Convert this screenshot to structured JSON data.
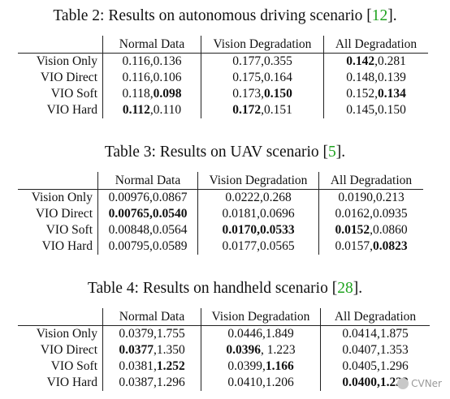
{
  "tables": [
    {
      "caption_prefix": "Table 2: Results on autonomous driving scenario [",
      "ref": "12",
      "caption_suffix": "].",
      "columns": [
        "Normal Data",
        "Vision Degradation",
        "All Degradation"
      ],
      "rows": [
        {
          "label": "Vision Only",
          "cells": [
            [
              {
                "v": "0.116,0.136",
                "b": false
              }
            ],
            [
              {
                "v": "0.177,0.355",
                "b": false
              }
            ],
            [
              {
                "v": "0.142",
                "b": true
              },
              {
                "v": ",0.281",
                "b": false
              }
            ]
          ]
        },
        {
          "label": "VIO Direct",
          "cells": [
            [
              {
                "v": "0.116,0.106",
                "b": false
              }
            ],
            [
              {
                "v": "0.175,0.164",
                "b": false
              }
            ],
            [
              {
                "v": "0.148,0.139",
                "b": false
              }
            ]
          ]
        },
        {
          "label": "VIO Soft",
          "cells": [
            [
              {
                "v": "0.118,",
                "b": false
              },
              {
                "v": "0.098",
                "b": true
              }
            ],
            [
              {
                "v": "0.173,",
                "b": false
              },
              {
                "v": "0.150",
                "b": true
              }
            ],
            [
              {
                "v": "0.152,",
                "b": false
              },
              {
                "v": "0.134",
                "b": true
              }
            ]
          ]
        },
        {
          "label": "VIO Hard",
          "cells": [
            [
              {
                "v": "0.112",
                "b": true
              },
              {
                "v": ",0.110",
                "b": false
              }
            ],
            [
              {
                "v": "0.172",
                "b": true
              },
              {
                "v": ",0.151",
                "b": false
              }
            ],
            [
              {
                "v": "0.145,0.150",
                "b": false
              }
            ]
          ]
        }
      ]
    },
    {
      "caption_prefix": "Table 3: Results on UAV scenario [",
      "ref": "5",
      "caption_suffix": "].",
      "columns": [
        "Normal Data",
        "Vision Degradation",
        "All Degradation"
      ],
      "rows": [
        {
          "label": "Vision Only",
          "cells": [
            [
              {
                "v": "0.00976,0.0867",
                "b": false
              }
            ],
            [
              {
                "v": "0.0222,0.268",
                "b": false
              }
            ],
            [
              {
                "v": "0.0190,0.213",
                "b": false
              }
            ]
          ]
        },
        {
          "label": "VIO Direct",
          "cells": [
            [
              {
                "v": "0.00765,0.0540",
                "b": true
              }
            ],
            [
              {
                "v": "0.0181,0.0696",
                "b": false
              }
            ],
            [
              {
                "v": "0.0162,0.0935",
                "b": false
              }
            ]
          ]
        },
        {
          "label": "VIO Soft",
          "cells": [
            [
              {
                "v": "0.00848,0.0564",
                "b": false
              }
            ],
            [
              {
                "v": "0.0170,0.0533",
                "b": true
              }
            ],
            [
              {
                "v": "0.0152",
                "b": true
              },
              {
                "v": ",0.0860",
                "b": false
              }
            ]
          ]
        },
        {
          "label": "VIO Hard",
          "cells": [
            [
              {
                "v": "0.00795,0.0589",
                "b": false
              }
            ],
            [
              {
                "v": "0.0177,0.0565",
                "b": false
              }
            ],
            [
              {
                "v": "0.0157,",
                "b": false
              },
              {
                "v": "0.0823",
                "b": true
              }
            ]
          ]
        }
      ]
    },
    {
      "caption_prefix": "Table 4: Results on handheld scenario [",
      "ref": "28",
      "caption_suffix": "].",
      "columns": [
        "Normal Data",
        "Vision Degradation",
        "All Degradation"
      ],
      "rows": [
        {
          "label": "Vision Only",
          "cells": [
            [
              {
                "v": "0.0379,1.755",
                "b": false
              }
            ],
            [
              {
                "v": "0.0446,1.849",
                "b": false
              }
            ],
            [
              {
                "v": "0.0414,1.875",
                "b": false
              }
            ]
          ]
        },
        {
          "label": "VIO Direct",
          "cells": [
            [
              {
                "v": "0.0377",
                "b": true
              },
              {
                "v": ",1.350",
                "b": false
              }
            ],
            [
              {
                "v": "0.0396",
                "b": true
              },
              {
                "v": ", 1.223",
                "b": false
              }
            ],
            [
              {
                "v": "0.0407,1.353",
                "b": false
              }
            ]
          ]
        },
        {
          "label": "VIO Soft",
          "cells": [
            [
              {
                "v": "0.0381,",
                "b": false
              },
              {
                "v": "1.252",
                "b": true
              }
            ],
            [
              {
                "v": "0.0399,",
                "b": false
              },
              {
                "v": "1.166",
                "b": true
              }
            ],
            [
              {
                "v": "0.0405,1.296",
                "b": false
              }
            ]
          ]
        },
        {
          "label": "VIO Hard",
          "cells": [
            [
              {
                "v": "0.0387,1.296",
                "b": false
              }
            ],
            [
              {
                "v": "0.0410,1.206",
                "b": false
              }
            ],
            [
              {
                "v": "0.0400",
                "b": true
              },
              {
                "v": ",1.232",
                "b": true
              }
            ]
          ]
        }
      ]
    }
  ],
  "watermark": "CVNer",
  "colors": {
    "ref_link": "#1fa31f",
    "text": "#111111",
    "rule": "#222222"
  }
}
